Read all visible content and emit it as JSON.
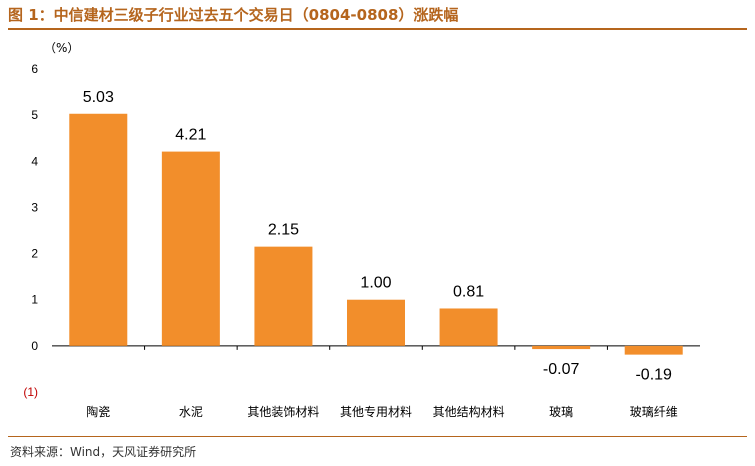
{
  "header": {
    "title": "图 1：中信建材三级子行业过去五个交易日（0804-0808）涨跌幅"
  },
  "footer": {
    "source": "资料来源：Wind，天风证券研究所"
  },
  "colors": {
    "bar": "#f28e2b",
    "accent": "#b5651d",
    "negative_tick": "#c00000"
  },
  "chart_data": {
    "type": "bar",
    "title": "",
    "xlabel": "",
    "ylabel": "",
    "unit_label": "（%）",
    "categories": [
      "陶瓷",
      "水泥",
      "其他装饰材料",
      "其他专用材料",
      "其他结构材料",
      "玻璃",
      "玻璃纤维"
    ],
    "values": [
      5.03,
      4.21,
      2.15,
      1.0,
      0.81,
      -0.07,
      -0.19
    ],
    "value_labels": [
      "5.03",
      "4.21",
      "2.15",
      "1.00",
      "0.81",
      "-0.07",
      "-0.19"
    ],
    "ylim": [
      -1,
      6
    ],
    "yticks": [
      -1,
      0,
      1,
      2,
      3,
      4,
      5,
      6
    ],
    "ytick_labels": [
      "(1)",
      "0",
      "1",
      "2",
      "3",
      "4",
      "5",
      "6"
    ],
    "grid": false,
    "legend": "none"
  }
}
